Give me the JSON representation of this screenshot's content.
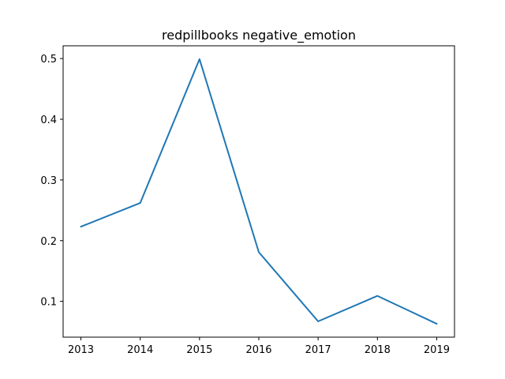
{
  "chart_data": {
    "type": "line",
    "title": "redpillbooks negative_emotion",
    "xlabel": "",
    "ylabel": "",
    "x": [
      2013,
      2014,
      2015,
      2016,
      2017,
      2018,
      2019
    ],
    "series": [
      {
        "values": [
          0.223,
          0.262,
          0.499,
          0.181,
          0.067,
          0.109,
          0.063
        ]
      }
    ],
    "xticks": [
      "2013",
      "2014",
      "2015",
      "2016",
      "2017",
      "2018",
      "2019"
    ],
    "yticks": [
      "0.1",
      "0.2",
      "0.3",
      "0.4",
      "0.5"
    ],
    "xlim": [
      2012.7,
      2019.3
    ],
    "ylim": [
      0.041,
      0.521
    ],
    "grid": false,
    "line_color": "#1f77b4"
  }
}
